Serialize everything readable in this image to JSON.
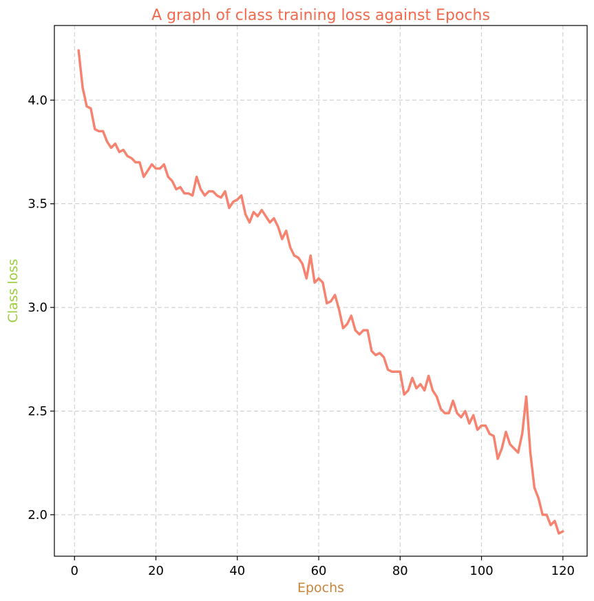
{
  "chart_data": {
    "type": "line",
    "title": "A graph of class training loss against Epochs",
    "xlabel": "Epochs",
    "ylabel": "Class loss",
    "xlim": [
      -4.95,
      125.95
    ],
    "ylim": [
      1.8,
      4.36
    ],
    "xticks": [
      0,
      20,
      40,
      60,
      80,
      100,
      120
    ],
    "xtick_labels": [
      "0",
      "20",
      "40",
      "60",
      "80",
      "100",
      "120"
    ],
    "yticks": [
      2.0,
      2.5,
      3.0,
      3.5,
      4.0
    ],
    "ytick_labels": [
      "2.0",
      "2.5",
      "3.0",
      "3.5",
      "4.0"
    ],
    "grid": true,
    "colors": {
      "line": "#f5836f",
      "title": "#f26a4e",
      "xlabel": "#c8843c",
      "ylabel": "#9acd3c"
    },
    "series": [
      {
        "x": [
          1,
          2,
          3,
          4,
          5,
          6,
          7,
          8,
          9,
          10,
          11,
          12,
          13,
          14,
          15,
          16,
          17,
          18,
          19,
          20,
          21,
          22,
          23,
          24,
          25,
          26,
          27,
          28,
          29,
          30,
          31,
          32,
          33,
          34,
          35,
          36,
          37,
          38,
          39,
          40,
          41,
          42,
          43,
          44,
          45,
          46,
          47,
          48,
          49,
          50,
          51,
          52,
          53,
          54,
          55,
          56,
          57,
          58,
          59,
          60,
          61,
          62,
          63,
          64,
          65,
          66,
          67,
          68,
          69,
          70,
          71,
          72,
          73,
          74,
          75,
          76,
          77,
          78,
          79,
          80,
          81,
          82,
          83,
          84,
          85,
          86,
          87,
          88,
          89,
          90,
          91,
          92,
          93,
          94,
          95,
          96,
          97,
          98,
          99,
          100,
          101,
          102,
          103,
          104,
          105,
          106,
          107,
          108,
          109,
          110,
          111,
          112,
          113,
          114,
          115,
          116,
          117,
          118,
          119,
          120
        ],
        "y": [
          4.24,
          4.06,
          3.97,
          3.96,
          3.86,
          3.85,
          3.85,
          3.8,
          3.77,
          3.79,
          3.75,
          3.76,
          3.73,
          3.72,
          3.7,
          3.7,
          3.63,
          3.66,
          3.69,
          3.67,
          3.67,
          3.69,
          3.63,
          3.61,
          3.57,
          3.58,
          3.55,
          3.55,
          3.54,
          3.63,
          3.57,
          3.54,
          3.56,
          3.56,
          3.54,
          3.53,
          3.56,
          3.48,
          3.51,
          3.52,
          3.54,
          3.45,
          3.41,
          3.46,
          3.44,
          3.47,
          3.44,
          3.41,
          3.43,
          3.39,
          3.33,
          3.37,
          3.29,
          3.25,
          3.24,
          3.21,
          3.14,
          3.25,
          3.12,
          3.14,
          3.12,
          3.02,
          3.03,
          3.06,
          2.99,
          2.9,
          2.92,
          2.96,
          2.89,
          2.87,
          2.89,
          2.89,
          2.79,
          2.77,
          2.78,
          2.76,
          2.7,
          2.69,
          2.69,
          2.69,
          2.58,
          2.6,
          2.66,
          2.61,
          2.63,
          2.6,
          2.67,
          2.6,
          2.57,
          2.51,
          2.49,
          2.49,
          2.55,
          2.49,
          2.47,
          2.5,
          2.44,
          2.48,
          2.41,
          2.43,
          2.43,
          2.39,
          2.38,
          2.27,
          2.32,
          2.4,
          2.34,
          2.32,
          2.3,
          2.39,
          2.57,
          2.3,
          2.13,
          2.08,
          2.0,
          2.0,
          1.95,
          1.97,
          1.91,
          1.92
        ]
      }
    ]
  }
}
